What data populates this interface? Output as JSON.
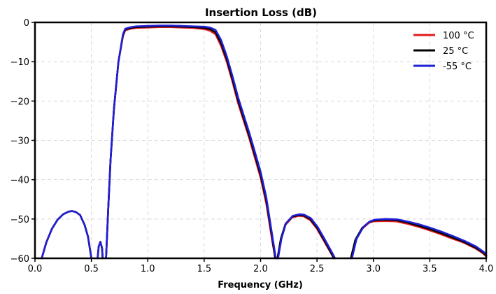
{
  "chart_data": {
    "type": "line",
    "title": "Insertion Loss (dB)",
    "xlabel": "Frequency (GHz)",
    "ylabel": "",
    "xlim": [
      0.0,
      4.0
    ],
    "ylim": [
      -60,
      0
    ],
    "xticks": [
      0.0,
      0.5,
      1.0,
      1.5,
      2.0,
      2.5,
      3.0,
      3.5,
      4.0
    ],
    "xtick_labels": [
      "0.0",
      "0.5",
      "1.0",
      "1.5",
      "2.0",
      "2.5",
      "3.0",
      "3.5",
      "4.0"
    ],
    "yticks": [
      0,
      -10,
      -20,
      -30,
      -40,
      -50,
      -60
    ],
    "ytick_labels": [
      "0",
      "−10",
      "−20",
      "−30",
      "−40",
      "−50",
      "−60"
    ],
    "grid": true,
    "legend_position": "top-right",
    "series": [
      {
        "name": "100 °C",
        "color": "#e41a1c",
        "segments": [
          [
            [
              0.06,
              -60
            ],
            [
              0.1,
              -56
            ],
            [
              0.15,
              -52.5
            ],
            [
              0.2,
              -50.2
            ],
            [
              0.25,
              -48.8
            ],
            [
              0.3,
              -48.1
            ],
            [
              0.33,
              -48
            ],
            [
              0.36,
              -48.2
            ],
            [
              0.4,
              -49
            ],
            [
              0.44,
              -51.5
            ],
            [
              0.47,
              -54.5
            ],
            [
              0.5,
              -60
            ]
          ],
          [
            [
              0.555,
              -60
            ],
            [
              0.565,
              -57
            ],
            [
              0.58,
              -55.8
            ],
            [
              0.595,
              -57.5
            ],
            [
              0.6,
              -60
            ]
          ],
          [
            [
              0.63,
              -60
            ],
            [
              0.65,
              -47
            ],
            [
              0.67,
              -35
            ],
            [
              0.7,
              -22
            ],
            [
              0.74,
              -10
            ],
            [
              0.78,
              -3.5
            ],
            [
              0.8,
              -2
            ],
            [
              0.85,
              -1.6
            ],
            [
              0.9,
              -1.4
            ],
            [
              1.0,
              -1.3
            ],
            [
              1.1,
              -1.2
            ],
            [
              1.2,
              -1.2
            ],
            [
              1.3,
              -1.3
            ],
            [
              1.4,
              -1.4
            ],
            [
              1.5,
              -1.7
            ],
            [
              1.55,
              -2.1
            ],
            [
              1.6,
              -3
            ],
            [
              1.65,
              -6
            ],
            [
              1.7,
              -10
            ],
            [
              1.75,
              -15
            ],
            [
              1.8,
              -20.5
            ],
            [
              1.85,
              -25
            ],
            [
              1.9,
              -29.5
            ],
            [
              1.95,
              -34.5
            ],
            [
              2.0,
              -39.5
            ],
            [
              2.05,
              -46
            ],
            [
              2.1,
              -55
            ],
            [
              2.13,
              -60
            ]
          ],
          [
            [
              2.15,
              -60
            ],
            [
              2.18,
              -55
            ],
            [
              2.22,
              -51.5
            ],
            [
              2.28,
              -49.6
            ],
            [
              2.34,
              -49.2
            ],
            [
              2.38,
              -49.3
            ],
            [
              2.44,
              -50.3
            ],
            [
              2.5,
              -52.5
            ],
            [
              2.56,
              -55.5
            ],
            [
              2.62,
              -58.5
            ],
            [
              2.65,
              -60
            ]
          ],
          [
            [
              2.8,
              -60
            ],
            [
              2.84,
              -55.5
            ],
            [
              2.9,
              -52.5
            ],
            [
              2.96,
              -51
            ],
            [
              3.0,
              -50.6
            ],
            [
              3.1,
              -50.5
            ],
            [
              3.2,
              -50.6
            ],
            [
              3.3,
              -51.2
            ],
            [
              3.4,
              -52
            ],
            [
              3.5,
              -52.9
            ],
            [
              3.6,
              -53.9
            ],
            [
              3.7,
              -55
            ],
            [
              3.8,
              -56
            ],
            [
              3.9,
              -57.4
            ],
            [
              3.97,
              -58.7
            ],
            [
              4.0,
              -59.5
            ]
          ]
        ]
      },
      {
        "name": "25 °C",
        "color": "#000000",
        "segments": [
          [
            [
              0.06,
              -60
            ],
            [
              0.1,
              -56
            ],
            [
              0.15,
              -52.5
            ],
            [
              0.2,
              -50.2
            ],
            [
              0.25,
              -48.8
            ],
            [
              0.3,
              -48.1
            ],
            [
              0.33,
              -48
            ],
            [
              0.36,
              -48.2
            ],
            [
              0.4,
              -49
            ],
            [
              0.44,
              -51.5
            ],
            [
              0.47,
              -54.5
            ],
            [
              0.5,
              -60
            ]
          ],
          [
            [
              0.555,
              -60
            ],
            [
              0.565,
              -57
            ],
            [
              0.58,
              -55.8
            ],
            [
              0.595,
              -57.5
            ],
            [
              0.6,
              -60
            ]
          ],
          [
            [
              0.63,
              -60
            ],
            [
              0.65,
              -47
            ],
            [
              0.67,
              -35
            ],
            [
              0.7,
              -22
            ],
            [
              0.74,
              -10
            ],
            [
              0.78,
              -3.2
            ],
            [
              0.8,
              -1.8
            ],
            [
              0.85,
              -1.4
            ],
            [
              0.9,
              -1.2
            ],
            [
              1.0,
              -1.1
            ],
            [
              1.1,
              -1.0
            ],
            [
              1.2,
              -1.0
            ],
            [
              1.3,
              -1.1
            ],
            [
              1.4,
              -1.2
            ],
            [
              1.5,
              -1.4
            ],
            [
              1.55,
              -1.7
            ],
            [
              1.6,
              -2.5
            ],
            [
              1.65,
              -5.3
            ],
            [
              1.7,
              -9.4
            ],
            [
              1.75,
              -14.4
            ],
            [
              1.8,
              -19.8
            ],
            [
              1.85,
              -24.4
            ],
            [
              1.9,
              -28.9
            ],
            [
              1.95,
              -33.8
            ],
            [
              2.0,
              -38.8
            ],
            [
              2.05,
              -45.2
            ],
            [
              2.1,
              -54.3
            ],
            [
              2.13,
              -60
            ]
          ],
          [
            [
              2.15,
              -60
            ],
            [
              2.18,
              -55
            ],
            [
              2.22,
              -51.3
            ],
            [
              2.28,
              -49.4
            ],
            [
              2.34,
              -49
            ],
            [
              2.38,
              -49.1
            ],
            [
              2.44,
              -50
            ],
            [
              2.5,
              -52.2
            ],
            [
              2.56,
              -55.2
            ],
            [
              2.62,
              -58.3
            ],
            [
              2.65,
              -60
            ]
          ],
          [
            [
              2.8,
              -60
            ],
            [
              2.84,
              -55.3
            ],
            [
              2.9,
              -52.3
            ],
            [
              2.96,
              -50.8
            ],
            [
              3.0,
              -50.4
            ],
            [
              3.1,
              -50.2
            ],
            [
              3.2,
              -50.3
            ],
            [
              3.3,
              -50.9
            ],
            [
              3.4,
              -51.7
            ],
            [
              3.5,
              -52.6
            ],
            [
              3.6,
              -53.6
            ],
            [
              3.7,
              -54.7
            ],
            [
              3.8,
              -55.8
            ],
            [
              3.9,
              -57.2
            ],
            [
              3.97,
              -58.5
            ],
            [
              4.0,
              -59.3
            ]
          ]
        ]
      },
      {
        "name": "-55 °C",
        "color": "#1f1fd6",
        "segments": [
          [
            [
              0.06,
              -60
            ],
            [
              0.1,
              -56
            ],
            [
              0.15,
              -52.5
            ],
            [
              0.2,
              -50.2
            ],
            [
              0.25,
              -48.8
            ],
            [
              0.3,
              -48.1
            ],
            [
              0.33,
              -48
            ],
            [
              0.36,
              -48.2
            ],
            [
              0.4,
              -49
            ],
            [
              0.44,
              -51.5
            ],
            [
              0.47,
              -54.5
            ],
            [
              0.5,
              -60
            ]
          ],
          [
            [
              0.555,
              -60
            ],
            [
              0.565,
              -57
            ],
            [
              0.58,
              -55.8
            ],
            [
              0.595,
              -57.5
            ],
            [
              0.6,
              -60
            ]
          ],
          [
            [
              0.63,
              -60
            ],
            [
              0.65,
              -47
            ],
            [
              0.67,
              -35
            ],
            [
              0.7,
              -22
            ],
            [
              0.74,
              -10
            ],
            [
              0.78,
              -3
            ],
            [
              0.8,
              -1.6
            ],
            [
              0.85,
              -1.2
            ],
            [
              0.9,
              -1.0
            ],
            [
              1.0,
              -0.9
            ],
            [
              1.1,
              -0.8
            ],
            [
              1.2,
              -0.8
            ],
            [
              1.3,
              -0.9
            ],
            [
              1.4,
              -1.0
            ],
            [
              1.5,
              -1.1
            ],
            [
              1.55,
              -1.3
            ],
            [
              1.6,
              -1.9
            ],
            [
              1.65,
              -4.5
            ],
            [
              1.7,
              -8.6
            ],
            [
              1.75,
              -13.6
            ],
            [
              1.8,
              -19
            ],
            [
              1.85,
              -23.6
            ],
            [
              1.9,
              -28.1
            ],
            [
              1.95,
              -33
            ],
            [
              2.0,
              -38
            ],
            [
              2.05,
              -44.4
            ],
            [
              2.1,
              -53.6
            ],
            [
              2.135,
              -60
            ]
          ],
          [
            [
              2.155,
              -60
            ],
            [
              2.185,
              -55
            ],
            [
              2.225,
              -51.1
            ],
            [
              2.285,
              -49.2
            ],
            [
              2.345,
              -48.8
            ],
            [
              2.385,
              -48.9
            ],
            [
              2.445,
              -49.8
            ],
            [
              2.505,
              -52
            ],
            [
              2.565,
              -55
            ],
            [
              2.625,
              -58.1
            ],
            [
              2.66,
              -60
            ]
          ],
          [
            [
              2.81,
              -60
            ],
            [
              2.85,
              -55.1
            ],
            [
              2.91,
              -52.1
            ],
            [
              2.97,
              -50.6
            ],
            [
              3.01,
              -50.2
            ],
            [
              3.11,
              -50
            ],
            [
              3.21,
              -50.1
            ],
            [
              3.31,
              -50.7
            ],
            [
              3.41,
              -51.4
            ],
            [
              3.51,
              -52.3
            ],
            [
              3.61,
              -53.3
            ],
            [
              3.71,
              -54.4
            ],
            [
              3.81,
              -55.6
            ],
            [
              3.91,
              -57
            ],
            [
              3.97,
              -58.2
            ],
            [
              4.0,
              -59
            ]
          ]
        ]
      }
    ]
  }
}
